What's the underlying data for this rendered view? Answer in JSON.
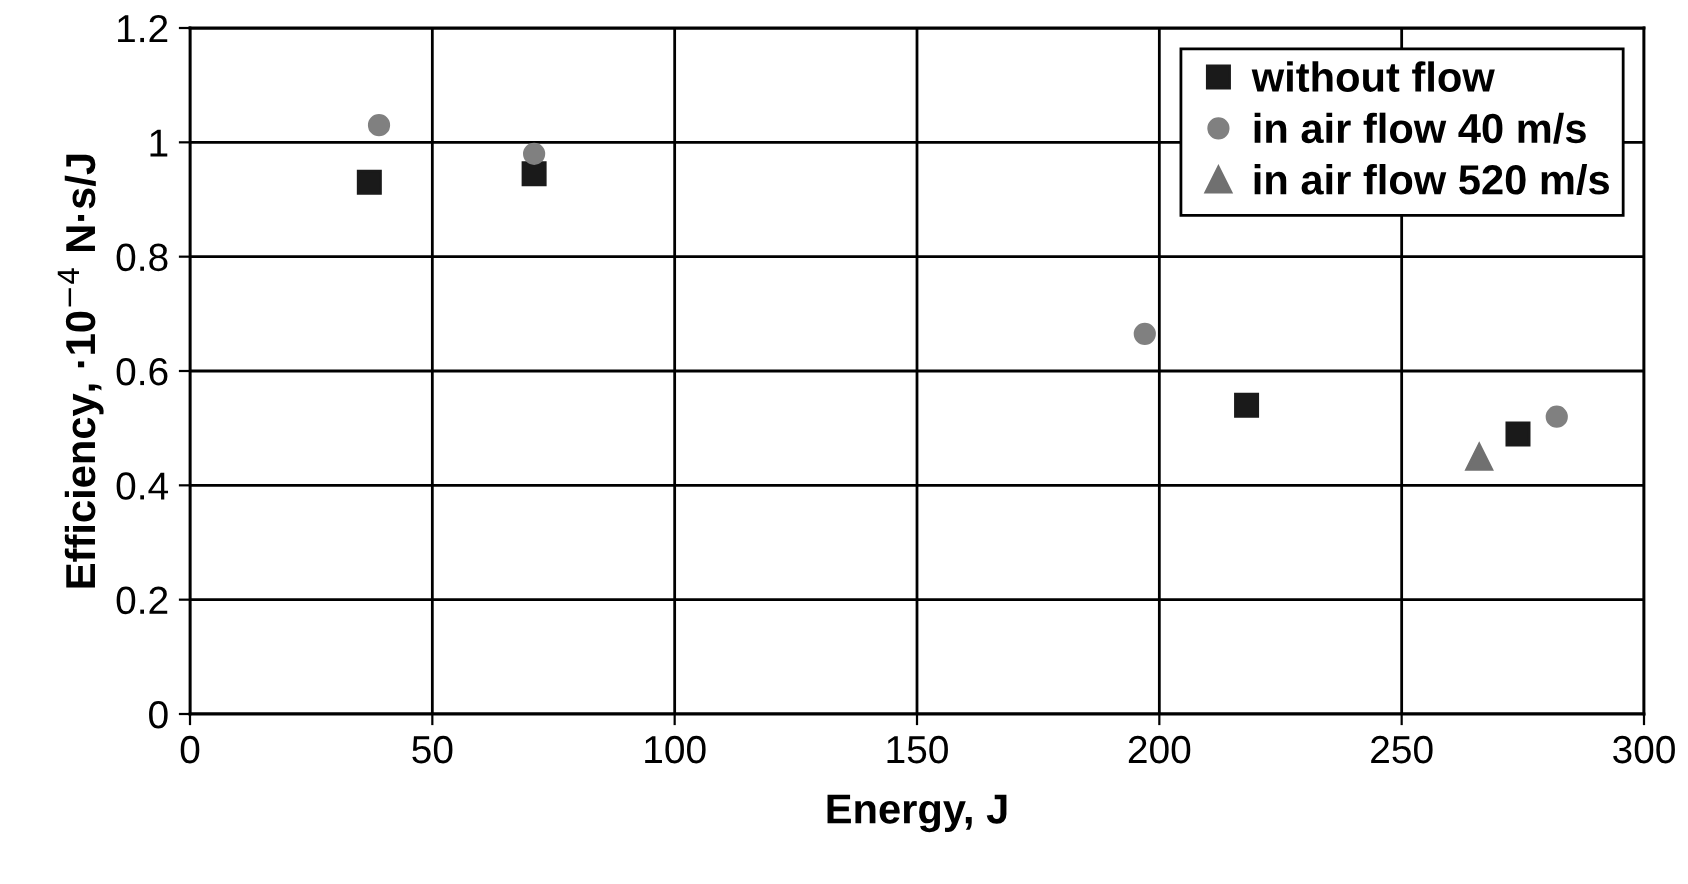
{
  "chart_data": {
    "type": "scatter",
    "xlabel": "Energy, J",
    "ylabel": "Efficiency, ·10$^{−4}$ N·s/J",
    "xlim": [
      0,
      300
    ],
    "xticks": [
      0,
      50,
      100,
      150,
      200,
      250,
      300
    ],
    "ylim": [
      0,
      1.2
    ],
    "yticks": [
      0,
      0.2,
      0.4,
      0.6,
      0.8,
      1,
      1.2
    ],
    "grid": true,
    "legend": "top right",
    "series": [
      {
        "name": "without flow",
        "color": "#1a1a1a",
        "marker": "square",
        "x": [
          37,
          71,
          218,
          274
        ],
        "values": [
          0.93,
          0.945,
          0.54,
          0.49
        ]
      },
      {
        "name": "in air flow 40 m/s",
        "color": "#808080",
        "marker": "circle",
        "x": [
          39,
          71,
          197,
          282
        ],
        "values": [
          1.03,
          0.98,
          0.665,
          0.52
        ]
      },
      {
        "name": "in air flow 520 m/s",
        "color": "#707070",
        "marker": "triangle",
        "x": [
          266
        ],
        "values": [
          0.45
        ]
      }
    ]
  }
}
